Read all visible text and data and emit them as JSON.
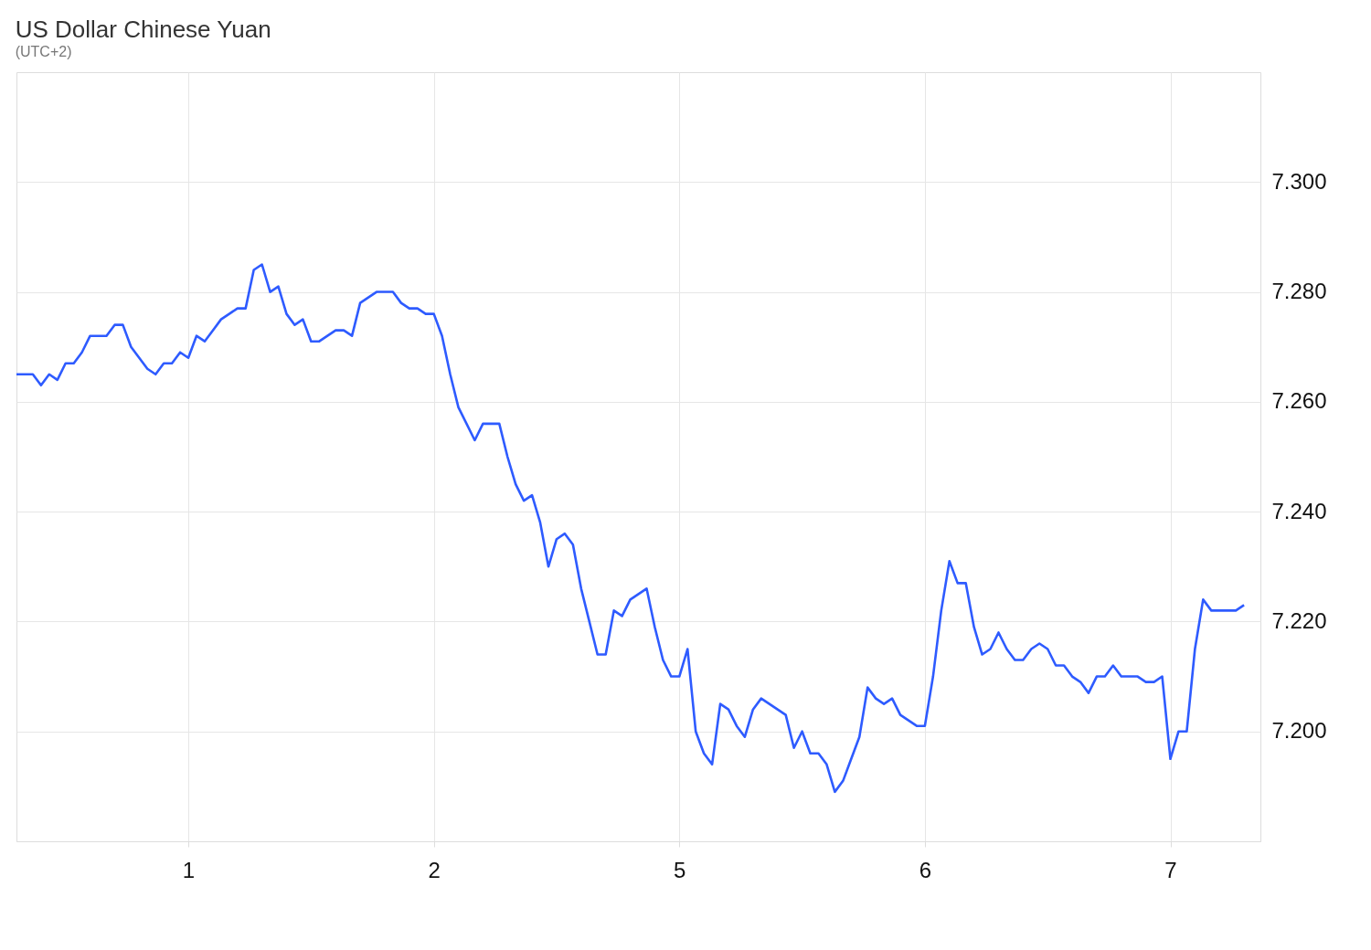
{
  "chart_data": {
    "type": "line",
    "title": "US Dollar Chinese Yuan",
    "subtitle": "(UTC+2)",
    "ylim": [
      7.18,
      7.32
    ],
    "yticks": [
      {
        "value": 7.2,
        "label": "7.200"
      },
      {
        "value": 7.22,
        "label": "7.220"
      },
      {
        "value": 7.24,
        "label": "7.240"
      },
      {
        "value": 7.26,
        "label": "7.260"
      },
      {
        "value": 7.28,
        "label": "7.280"
      },
      {
        "value": 7.3,
        "label": "7.300"
      }
    ],
    "grid": true,
    "marker": "none",
    "line_style": "solid",
    "categories": [
      null,
      null,
      null,
      null,
      null,
      null,
      null,
      null,
      null,
      null,
      null,
      null,
      null,
      null,
      null,
      null,
      null,
      null,
      null,
      null,
      null,
      "1",
      null,
      null,
      null,
      null,
      null,
      null,
      null,
      null,
      null,
      null,
      null,
      null,
      null,
      null,
      null,
      null,
      null,
      null,
      null,
      null,
      null,
      null,
      null,
      null,
      null,
      null,
      null,
      null,
      null,
      "2",
      null,
      null,
      null,
      null,
      null,
      null,
      null,
      null,
      null,
      null,
      null,
      null,
      null,
      null,
      null,
      null,
      null,
      null,
      null,
      null,
      null,
      null,
      null,
      null,
      null,
      null,
      null,
      null,
      null,
      "5",
      null,
      null,
      null,
      null,
      null,
      null,
      null,
      null,
      null,
      null,
      null,
      null,
      null,
      null,
      null,
      null,
      null,
      null,
      null,
      null,
      null,
      null,
      null,
      null,
      null,
      null,
      null,
      null,
      null,
      "6",
      null,
      null,
      null,
      null,
      null,
      null,
      null,
      null,
      null,
      null,
      null,
      null,
      null,
      null,
      null,
      null,
      null,
      null,
      null,
      null,
      null,
      null,
      null,
      null,
      null,
      null,
      null,
      null,
      null,
      "7",
      null,
      null,
      null,
      null,
      null,
      null,
      null,
      null,
      null,
      null,
      null
    ],
    "series": [
      {
        "color": "#2e5bff",
        "values": [
          7.265,
          7.265,
          7.265,
          7.263,
          7.265,
          7.264,
          7.267,
          7.267,
          7.269,
          7.272,
          7.272,
          7.272,
          7.274,
          7.274,
          7.27,
          7.268,
          7.266,
          7.265,
          7.267,
          7.267,
          7.269,
          7.268,
          7.272,
          7.271,
          7.273,
          7.275,
          7.276,
          7.277,
          7.277,
          7.284,
          7.285,
          7.28,
          7.281,
          7.276,
          7.274,
          7.275,
          7.271,
          7.271,
          7.272,
          7.273,
          7.273,
          7.272,
          7.278,
          7.279,
          7.28,
          7.28,
          7.28,
          7.278,
          7.277,
          7.277,
          7.276,
          7.276,
          7.272,
          7.265,
          7.259,
          7.256,
          7.253,
          7.256,
          7.256,
          7.256,
          7.25,
          7.245,
          7.242,
          7.243,
          7.238,
          7.23,
          7.235,
          7.236,
          7.234,
          7.226,
          7.22,
          7.214,
          7.214,
          7.222,
          7.221,
          7.224,
          7.225,
          7.226,
          7.219,
          7.213,
          7.21,
          7.21,
          7.215,
          7.2,
          7.196,
          7.194,
          7.205,
          7.204,
          7.201,
          7.199,
          7.204,
          7.206,
          7.205,
          7.204,
          7.203,
          7.197,
          7.2,
          7.196,
          7.196,
          7.194,
          7.189,
          7.191,
          7.195,
          7.199,
          7.208,
          7.206,
          7.205,
          7.206,
          7.203,
          7.202,
          7.201,
          7.201,
          7.21,
          7.222,
          7.231,
          7.227,
          7.227,
          7.219,
          7.214,
          7.215,
          7.218,
          7.215,
          7.213,
          7.213,
          7.215,
          7.216,
          7.215,
          7.212,
          7.212,
          7.21,
          7.209,
          7.207,
          7.21,
          7.21,
          7.212,
          7.21,
          7.21,
          7.21,
          7.209,
          7.209,
          7.21,
          7.195,
          7.2,
          7.2,
          7.215,
          7.224,
          7.222,
          7.222,
          7.222,
          7.222,
          7.223,
          null,
          null
        ]
      }
    ]
  }
}
